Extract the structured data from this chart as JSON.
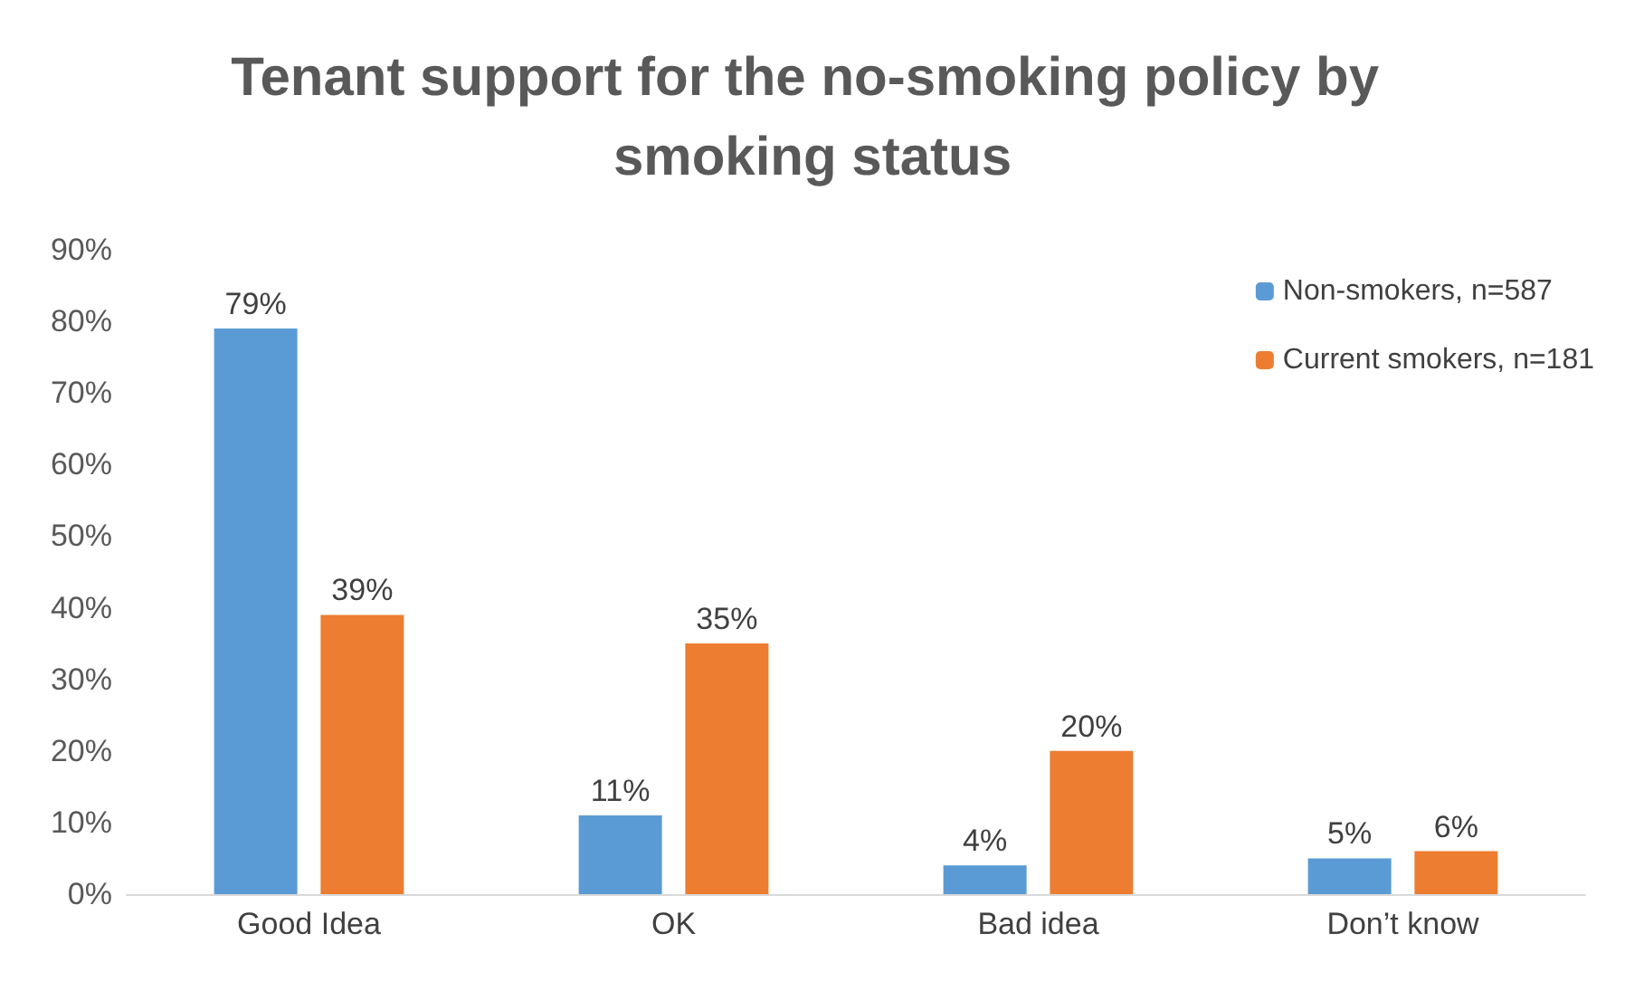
{
  "chart_data": {
    "type": "bar",
    "title": "Tenant support for the no-smoking policy by smoking status",
    "categories": [
      "Good Idea",
      "OK",
      "Bad idea",
      "Don’t know"
    ],
    "series": [
      {
        "name": "Non-smokers, n=587",
        "color": "#5b9bd5",
        "values": [
          79,
          11,
          4,
          5
        ],
        "value_labels": [
          "79%",
          "11%",
          "4%",
          "5%"
        ]
      },
      {
        "name": "Current smokers, n=181",
        "color": "#ed7d31",
        "values": [
          39,
          35,
          20,
          6
        ],
        "value_labels": [
          "39%",
          "35%",
          "20%",
          "6%"
        ]
      }
    ],
    "ylim": [
      0,
      90
    ],
    "yticks": [
      {
        "value": 0,
        "label": "0%"
      },
      {
        "value": 10,
        "label": "10%"
      },
      {
        "value": 20,
        "label": "20%"
      },
      {
        "value": 30,
        "label": "30%"
      },
      {
        "value": 40,
        "label": "40%"
      },
      {
        "value": 50,
        "label": "50%"
      },
      {
        "value": 60,
        "label": "60%"
      },
      {
        "value": 70,
        "label": "70%"
      },
      {
        "value": 80,
        "label": "80%"
      },
      {
        "value": 90,
        "label": "90%"
      }
    ],
    "grid": false,
    "legend": "top right"
  }
}
